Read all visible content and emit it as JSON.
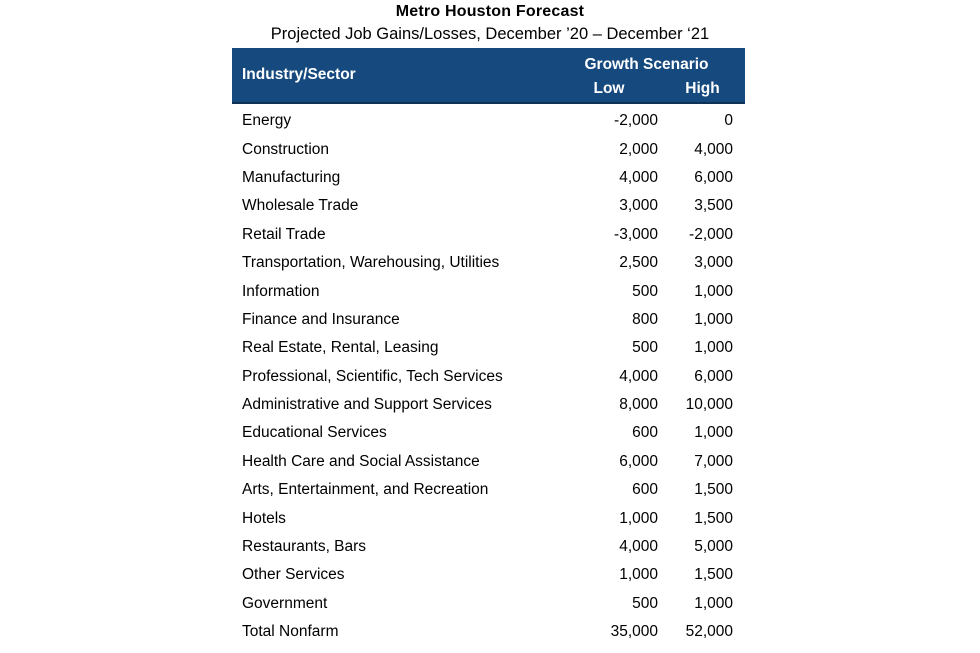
{
  "title": "Metro Houston Forecast",
  "subtitle": "Projected Job Gains/Losses, December ’20 – December ‘21",
  "colors": {
    "header_bg": "#164A7E",
    "header_border": "#0E3357",
    "header_text": "#FFFFFF",
    "body_text": "#000000",
    "background": "#FFFFFF"
  },
  "table": {
    "sector_header": "Industry/Sector",
    "group_header": "Growth Scenario",
    "low_header": "Low",
    "high_header": "High",
    "rows": [
      {
        "sector": "Energy",
        "low": "-2,000",
        "high": "0"
      },
      {
        "sector": "Construction",
        "low": "2,000",
        "high": "4,000"
      },
      {
        "sector": "Manufacturing",
        "low": "4,000",
        "high": "6,000"
      },
      {
        "sector": "Wholesale Trade",
        "low": "3,000",
        "high": "3,500"
      },
      {
        "sector": "Retail Trade",
        "low": "-3,000",
        "high": "-2,000"
      },
      {
        "sector": "Transportation, Warehousing, Utilities",
        "low": "2,500",
        "high": "3,000"
      },
      {
        "sector": "Information",
        "low": "500",
        "high": "1,000"
      },
      {
        "sector": "Finance and Insurance",
        "low": "800",
        "high": "1,000"
      },
      {
        "sector": "Real Estate, Rental, Leasing",
        "low": "500",
        "high": "1,000"
      },
      {
        "sector": "Professional, Scientific, Tech Services",
        "low": "4,000",
        "high": "6,000"
      },
      {
        "sector": "Administrative and Support Services",
        "low": "8,000",
        "high": "10,000"
      },
      {
        "sector": "Educational Services",
        "low": "600",
        "high": "1,000"
      },
      {
        "sector": "Health Care and Social Assistance",
        "low": "6,000",
        "high": "7,000"
      },
      {
        "sector": "Arts, Entertainment, and Recreation",
        "low": "600",
        "high": "1,500"
      },
      {
        "sector": "Hotels",
        "low": "1,000",
        "high": "1,500"
      },
      {
        "sector": "Restaurants, Bars",
        "low": "4,000",
        "high": "5,000"
      },
      {
        "sector": "Other Services",
        "low": "1,000",
        "high": "1,500"
      },
      {
        "sector": "Government",
        "low": "500",
        "high": "1,000"
      },
      {
        "sector": "Total Nonfarm",
        "low": "35,000",
        "high": "52,000"
      }
    ]
  },
  "chart_data": {
    "type": "table",
    "title": "Metro Houston Forecast",
    "subtitle": "Projected Job Gains/Losses, December ’20 – December ‘21",
    "columns": [
      "Industry/Sector",
      "Growth Scenario Low",
      "Growth Scenario High"
    ],
    "categories": [
      "Energy",
      "Construction",
      "Manufacturing",
      "Wholesale Trade",
      "Retail Trade",
      "Transportation, Warehousing, Utilities",
      "Information",
      "Finance and Insurance",
      "Real Estate, Rental, Leasing",
      "Professional, Scientific, Tech Services",
      "Administrative and Support Services",
      "Educational Services",
      "Health Care and Social Assistance",
      "Arts, Entertainment, and Recreation",
      "Hotels",
      "Restaurants, Bars",
      "Other Services",
      "Government",
      "Total Nonfarm"
    ],
    "series": [
      {
        "name": "Low",
        "values": [
          -2000,
          2000,
          4000,
          3000,
          -3000,
          2500,
          500,
          800,
          500,
          4000,
          8000,
          600,
          6000,
          600,
          1000,
          4000,
          1000,
          500,
          35000
        ]
      },
      {
        "name": "High",
        "values": [
          0,
          4000,
          6000,
          3500,
          -2000,
          3000,
          1000,
          1000,
          1000,
          6000,
          10000,
          1000,
          7000,
          1500,
          1500,
          5000,
          1500,
          1000,
          52000
        ]
      }
    ]
  }
}
